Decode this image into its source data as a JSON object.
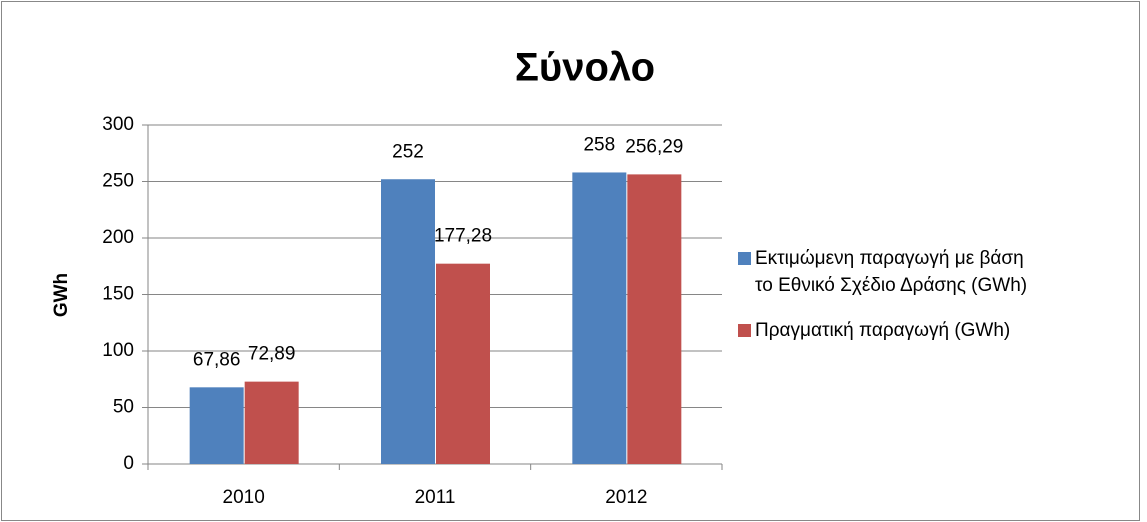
{
  "chart_data": {
    "type": "bar",
    "title": "Σύνολο",
    "y_label": "GWh",
    "categories": [
      "2010",
      "2011",
      "2012"
    ],
    "series": [
      {
        "name": "Εκτιμώμενη παραγωγή με βάση το Εθνικό Σχέδιο Δράσης (GWh)",
        "color": "#4f81bd",
        "values": [
          67.86,
          252,
          258
        ],
        "value_labels": [
          "67,86",
          "252",
          "258"
        ]
      },
      {
        "name": "Πραγματική παραγωγή (GWh)",
        "color": "#c0504d",
        "values": [
          72.89,
          177.28,
          256.29
        ],
        "value_labels": [
          "72,89",
          "177,28",
          "256,29"
        ]
      }
    ],
    "ylim": [
      0,
      300
    ],
    "yticks": [
      0,
      50,
      100,
      150,
      200,
      250,
      300
    ],
    "grid": true,
    "legend": "right"
  }
}
